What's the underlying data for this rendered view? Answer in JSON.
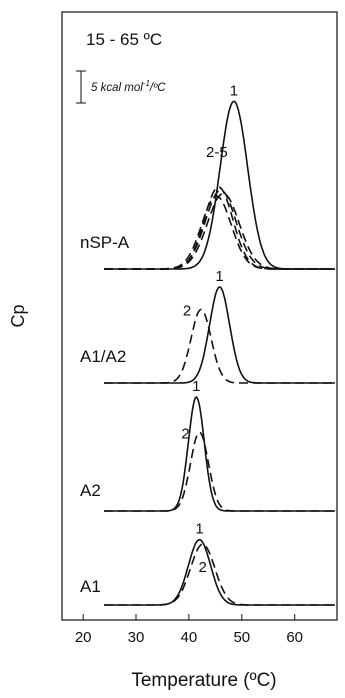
{
  "chart_data": {
    "type": "line",
    "title": "",
    "xlabel": "Temperature (ºC)",
    "ylabel": "Cp",
    "xlim": [
      16,
      68
    ],
    "x_ticks": [
      20,
      30,
      40,
      50,
      60
    ],
    "grid": false,
    "temperature_range_label": "15 - 65 ºC",
    "scale_bar": {
      "value": 5,
      "label_main": "5 kcal mol",
      "label_sup": "-1",
      "label_tail": "/ºC"
    },
    "panels": [
      {
        "name": "nSP-A",
        "curves": [
          {
            "label": "1",
            "style": "solid",
            "peak_x": 48.5,
            "peak_height_kcal": 26.2,
            "width_sd": 2.6
          },
          {
            "label": "",
            "style": "dashed",
            "peak_x": 45.6,
            "peak_height_kcal": 12.8,
            "width_sd": 2.7
          },
          {
            "label": "",
            "style": "dashed",
            "peak_x": 46.0,
            "peak_height_kcal": 12.3,
            "width_sd": 2.9
          },
          {
            "label": "",
            "style": "dashed",
            "peak_x": 46.5,
            "peak_height_kcal": 11.8,
            "width_sd": 3.0
          },
          {
            "label": "",
            "style": "dashed",
            "peak_x": 45.2,
            "peak_height_kcal": 11.4,
            "width_sd": 2.8
          }
        ],
        "group_label": "2-5"
      },
      {
        "name": "A1/A2",
        "curves": [
          {
            "label": "1",
            "style": "solid",
            "peak_x": 45.8,
            "peak_height_kcal": 15.0,
            "width_sd": 1.9
          },
          {
            "label": "2",
            "style": "dashed",
            "peak_x": 42.3,
            "peak_height_kcal": 11.5,
            "width_sd": 1.9
          }
        ]
      },
      {
        "name": "A2",
        "curves": [
          {
            "label": "1",
            "style": "solid",
            "peak_x": 41.4,
            "peak_height_kcal": 17.8,
            "width_sd": 1.5
          },
          {
            "label": "2",
            "style": "dashed",
            "peak_x": 42.0,
            "peak_height_kcal": 12.3,
            "width_sd": 1.7
          }
        ]
      },
      {
        "name": "A1",
        "curves": [
          {
            "label": "1",
            "style": "solid",
            "peak_x": 42.0,
            "peak_height_kcal": 10.2,
            "width_sd": 2.1
          },
          {
            "label": "2",
            "style": "dashed",
            "peak_x": 42.6,
            "peak_height_kcal": 9.5,
            "width_sd": 2.3
          }
        ]
      }
    ]
  }
}
